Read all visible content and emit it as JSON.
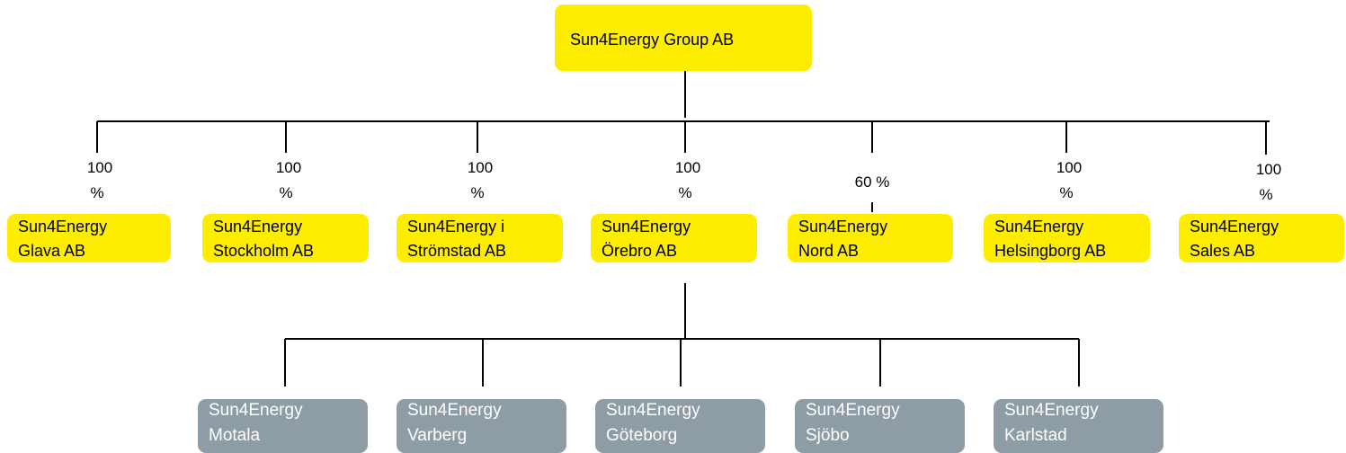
{
  "root": {
    "label": "Sun4Energy Group AB"
  },
  "subsidiaries": [
    {
      "lines": [
        "Sun4Energy",
        "Glava AB"
      ],
      "ownership": [
        "100",
        "%"
      ]
    },
    {
      "lines": [
        "Sun4Energy",
        "Stockholm AB"
      ],
      "ownership": [
        "100",
        "%"
      ]
    },
    {
      "lines": [
        "Sun4Energy i",
        "Strömstad AB"
      ],
      "ownership": [
        "100",
        "%"
      ]
    },
    {
      "lines": [
        "Sun4Energy",
        "Örebro AB"
      ],
      "ownership": [
        "100",
        "%"
      ]
    },
    {
      "lines": [
        "Sun4Energy",
        "Nord AB"
      ],
      "ownership": [
        "60 %"
      ]
    },
    {
      "lines": [
        "Sun4Energy",
        "Helsingborg AB"
      ],
      "ownership": [
        "100",
        "%"
      ]
    },
    {
      "lines": [
        "Sun4Energy",
        "Sales AB"
      ],
      "ownership": [
        "100",
        "%"
      ]
    }
  ],
  "branches": [
    {
      "lines": [
        "Sun4Energy",
        "Motala"
      ]
    },
    {
      "lines": [
        "Sun4Energy",
        "Varberg"
      ]
    },
    {
      "lines": [
        "Sun4Energy",
        "Göteborg"
      ]
    },
    {
      "lines": [
        "Sun4Energy",
        "Sjöbo"
      ]
    },
    {
      "lines": [
        "Sun4Energy",
        "Karlstad"
      ]
    }
  ]
}
